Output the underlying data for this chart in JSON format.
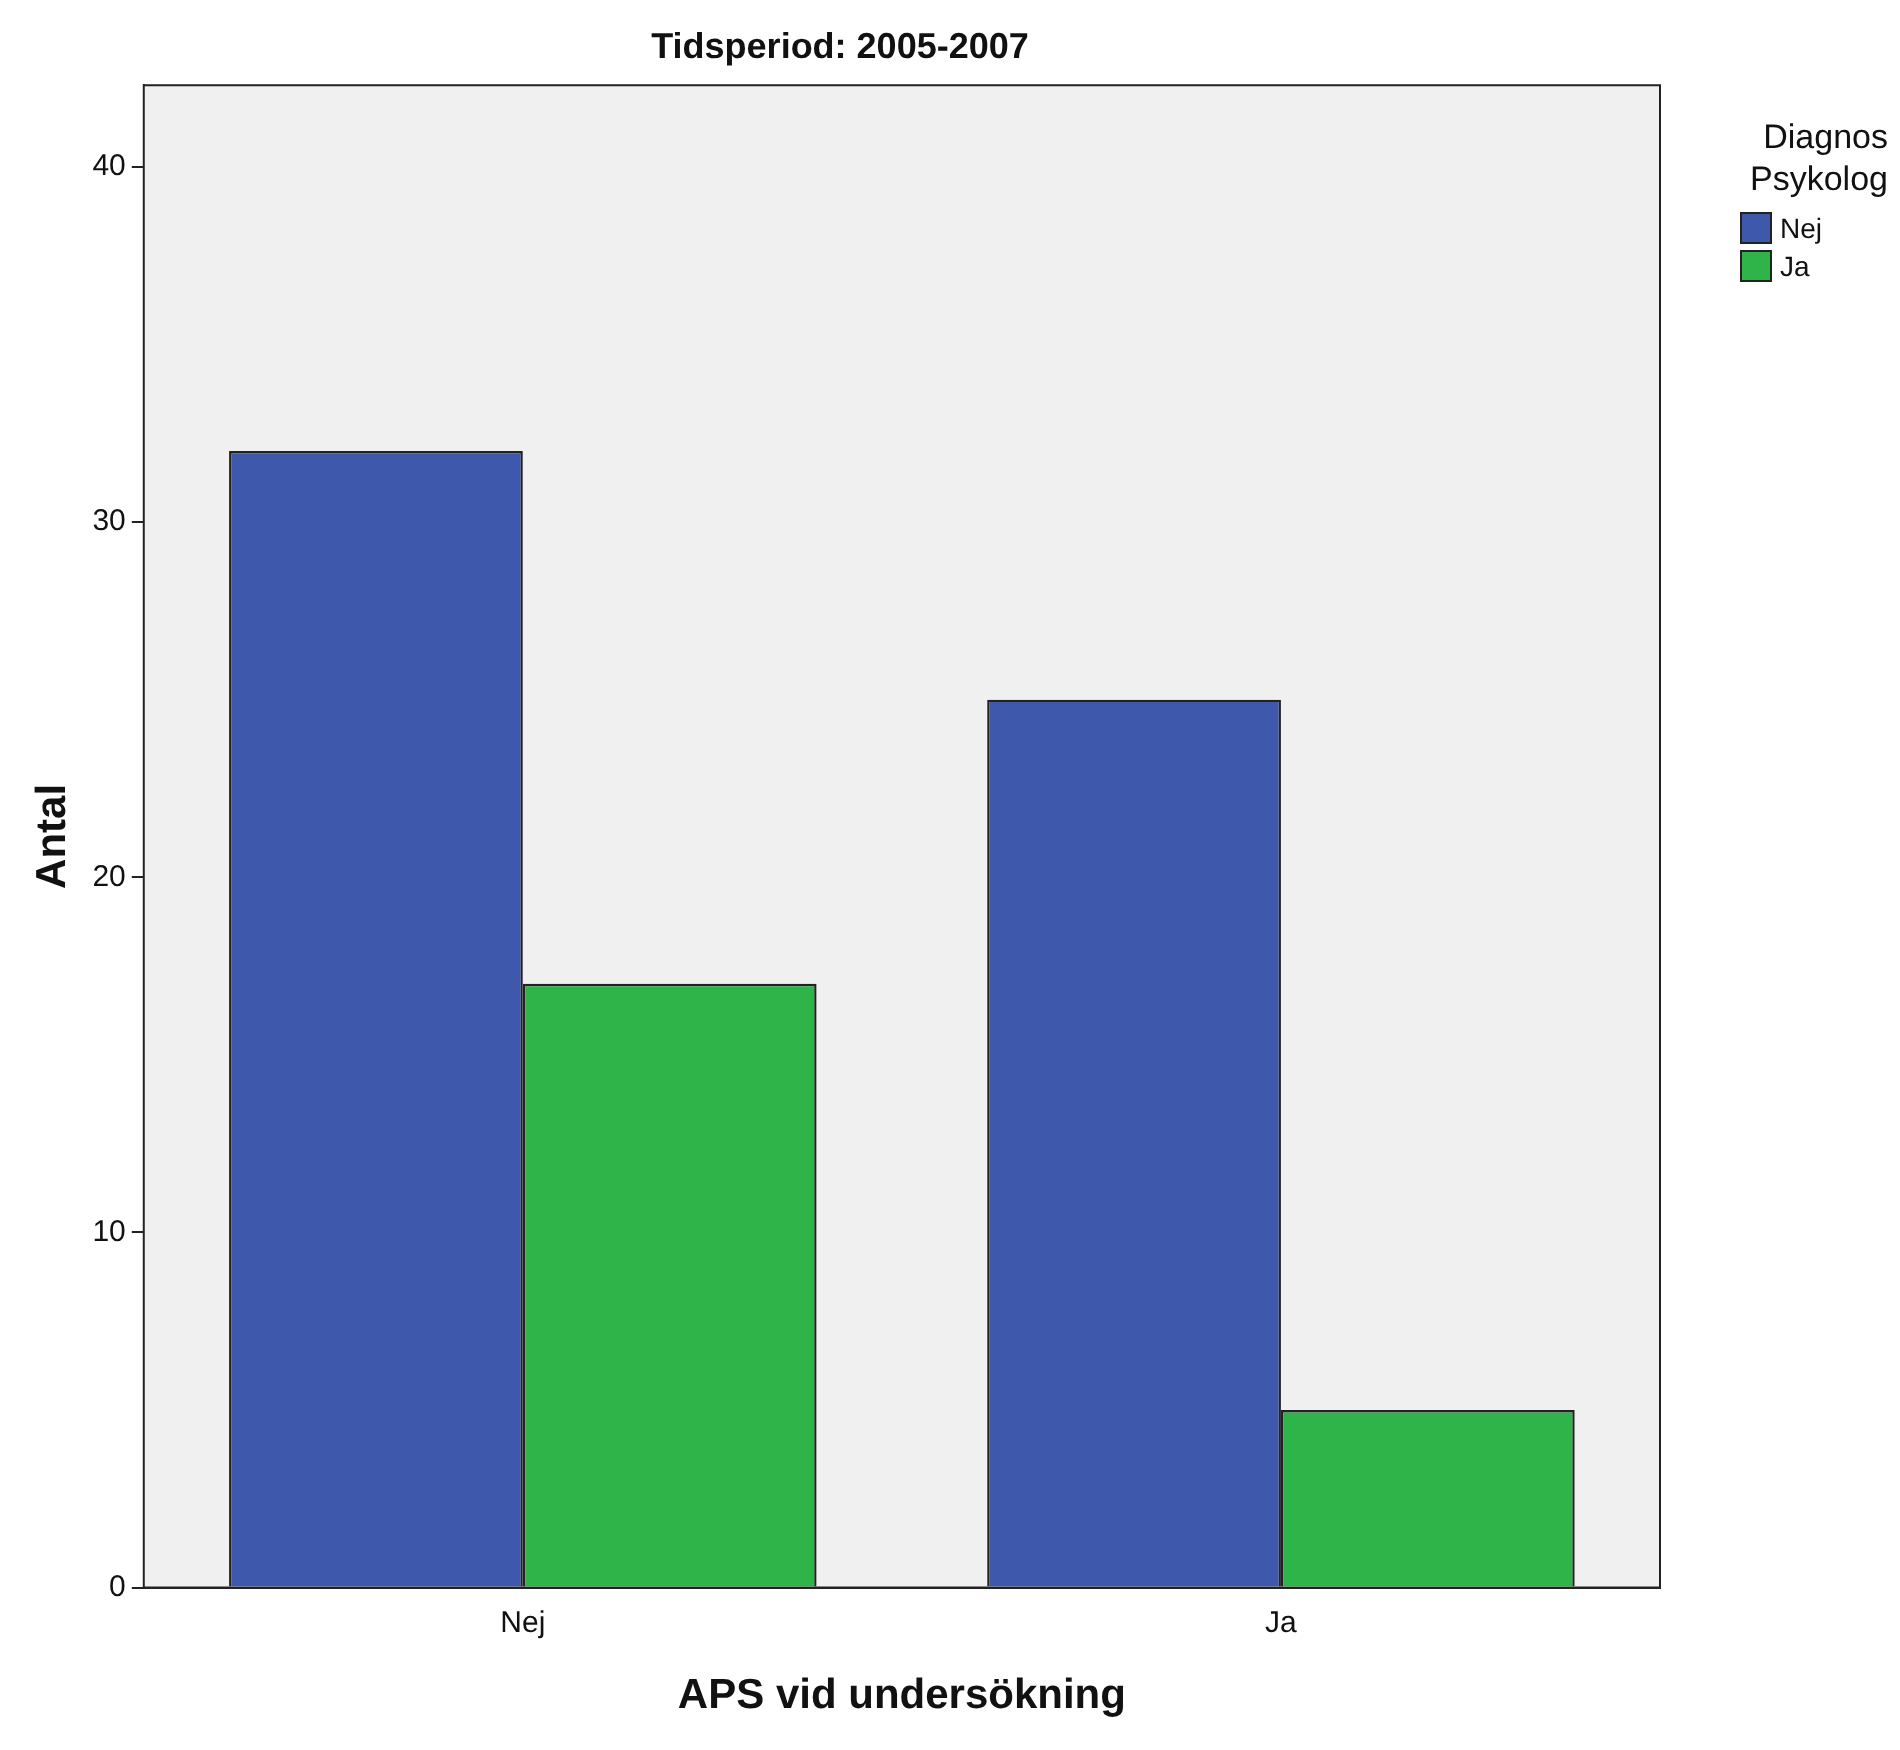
{
  "chart_data": {
    "type": "bar",
    "title": "Tidsperiod: 2005-2007",
    "xlabel": "APS vid undersökning",
    "ylabel": "Antal",
    "legend_title": "Diagnos Psykolog",
    "categories": [
      "Nej",
      "Ja"
    ],
    "series": [
      {
        "name": "Nej",
        "color": "#3e58ac",
        "values": [
          32,
          25
        ]
      },
      {
        "name": "Ja",
        "color": "#2fb44a",
        "values": [
          17,
          5
        ]
      }
    ],
    "ylim": [
      0,
      42.3
    ],
    "yticks": [
      0,
      10,
      20,
      30,
      40
    ],
    "grid": false,
    "legend": "top right"
  }
}
